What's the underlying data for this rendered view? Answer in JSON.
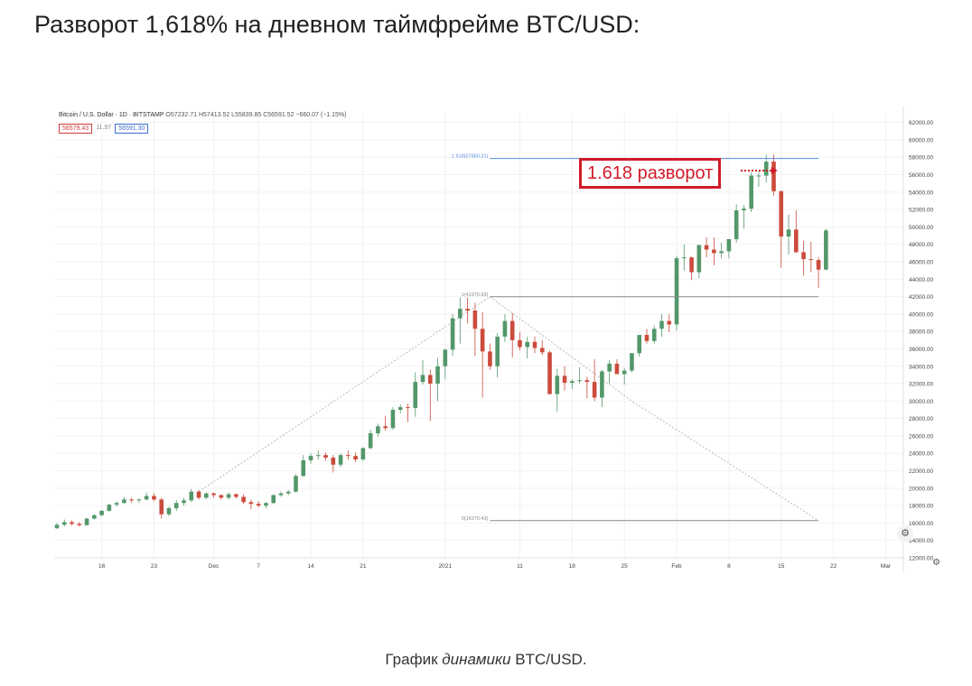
{
  "page": {
    "title": "Разворот 1,618% на дневном таймфрейме BTC/USD:",
    "caption_before": "График ",
    "caption_em": "динамики",
    "caption_after": " BTC/USD."
  },
  "legend": {
    "symbol": "Bitcoin / U.S. Dollar · 1D · BITSTAMP",
    "ohlc": "O57232.71 H57413.52 L55839.85 C56591.52 −660.07 (−1.15%)",
    "bid": "56579.43",
    "spread": "11.97",
    "ask": "56591.30"
  },
  "annotation": {
    "label": "1.618 разворот"
  },
  "colors": {
    "up": "#53976a",
    "down": "#cc4b3c",
    "fib_top": "#5b8fe0",
    "fib_line": "#8a8a8a",
    "annotation": "#d11a2a",
    "grid": "#f2f2f2"
  },
  "icons": {
    "settings": "gear-icon"
  },
  "chart_data": {
    "type": "candlestick",
    "title": "",
    "ylim": [
      12000,
      63000
    ],
    "y_ticks": [
      12000,
      14000,
      16000,
      18000,
      20000,
      22000,
      24000,
      26000,
      28000,
      30000,
      32000,
      34000,
      36000,
      38000,
      40000,
      42000,
      44000,
      46000,
      48000,
      50000,
      52000,
      54000,
      56000,
      58000,
      60000,
      62000
    ],
    "y_tick_labels": [
      "12000.00",
      "14000.00",
      "16000.00",
      "18000.00",
      "20000.00",
      "22000.00",
      "24000.00",
      "26000.00",
      "28000.00",
      "30000.00",
      "32000.00",
      "34000.00",
      "36000.00",
      "38000.00",
      "40000.00",
      "42000.00",
      "44000.00",
      "46000.00",
      "48000.00",
      "50000.00",
      "52000.00",
      "54000.00",
      "56000.00",
      "58000.00",
      "60000.00",
      "62000.00"
    ],
    "x_tick_labels": [
      {
        "label": "16",
        "day": 6
      },
      {
        "label": "23",
        "day": 13
      },
      {
        "label": "Dec",
        "day": 21
      },
      {
        "label": "7",
        "day": 27
      },
      {
        "label": "14",
        "day": 34
      },
      {
        "label": "21",
        "day": 41
      },
      {
        "label": "2021",
        "day": 52
      },
      {
        "label": "11",
        "day": 62
      },
      {
        "label": "18",
        "day": 69
      },
      {
        "label": "25",
        "day": 76
      },
      {
        "label": "Feb",
        "day": 83
      },
      {
        "label": "8",
        "day": 90
      },
      {
        "label": "15",
        "day": 97
      },
      {
        "label": "22",
        "day": 104
      },
      {
        "label": "Mar",
        "day": 111
      }
    ],
    "x_range": [
      0,
      113
    ],
    "fib_levels": [
      {
        "label": "1.618(57860.31)",
        "value": 57860.31,
        "ratio": 1.618,
        "x_start": 58,
        "x_end": 102,
        "color": "#5b8fe0"
      },
      {
        "label": "1(41976.93)",
        "value": 41976.93,
        "ratio": 1,
        "x_start": 58,
        "x_end": 102,
        "color": "#8a8a8a"
      },
      {
        "label": "0(16270.43)",
        "value": 16270.43,
        "ratio": 0,
        "x_start": 58,
        "x_end": 102,
        "color": "#8a8a8a"
      }
    ],
    "fib_path": [
      [
        19,
        19600
      ],
      [
        58,
        41976.93
      ],
      [
        77,
        30000
      ],
      [
        102,
        16270.43
      ]
    ],
    "ohlc": [
      [
        15400,
        16000,
        15300,
        15800
      ],
      [
        15800,
        16400,
        15600,
        16100
      ],
      [
        16100,
        16300,
        15700,
        15900
      ],
      [
        15900,
        16100,
        15600,
        15750
      ],
      [
        15750,
        16600,
        15700,
        16500
      ],
      [
        16500,
        17000,
        16400,
        16900
      ],
      [
        16900,
        17500,
        16800,
        17400
      ],
      [
        17400,
        18200,
        17300,
        18100
      ],
      [
        18100,
        18500,
        17900,
        18300
      ],
      [
        18300,
        19000,
        18200,
        18700
      ],
      [
        18700,
        18900,
        18300,
        18600
      ],
      [
        18600,
        18800,
        18300,
        18700
      ],
      [
        18700,
        19500,
        18600,
        19100
      ],
      [
        19100,
        19400,
        18500,
        18700
      ],
      [
        18700,
        18900,
        16500,
        17000
      ],
      [
        17000,
        17900,
        16800,
        17700
      ],
      [
        17700,
        18600,
        17400,
        18300
      ],
      [
        18300,
        18900,
        18000,
        18600
      ],
      [
        18600,
        19900,
        18400,
        19600
      ],
      [
        19600,
        19800,
        18700,
        18900
      ],
      [
        18900,
        19500,
        18700,
        19400
      ],
      [
        19400,
        19500,
        18900,
        19200
      ],
      [
        19200,
        19300,
        18700,
        18900
      ],
      [
        18900,
        19500,
        18700,
        19300
      ],
      [
        19300,
        19400,
        18800,
        19000
      ],
      [
        19000,
        19300,
        18200,
        18400
      ],
      [
        18400,
        18700,
        17600,
        18200
      ],
      [
        18200,
        18500,
        17800,
        18000
      ],
      [
        18000,
        18400,
        17700,
        18300
      ],
      [
        18300,
        19300,
        18200,
        19200
      ],
      [
        19200,
        19600,
        19000,
        19400
      ],
      [
        19400,
        19800,
        19200,
        19600
      ],
      [
        19600,
        21600,
        19500,
        21400
      ],
      [
        21400,
        23800,
        21300,
        23200
      ],
      [
        23200,
        24000,
        22800,
        23700
      ],
      [
        23700,
        24300,
        23300,
        23800
      ],
      [
        23800,
        24100,
        23200,
        23500
      ],
      [
        23500,
        23800,
        21800,
        22700
      ],
      [
        22700,
        24000,
        22400,
        23800
      ],
      [
        23800,
        24300,
        23300,
        23700
      ],
      [
        23700,
        24100,
        23000,
        23300
      ],
      [
        23300,
        24700,
        23100,
        24600
      ],
      [
        24600,
        26700,
        24500,
        26300
      ],
      [
        26300,
        27400,
        25900,
        27100
      ],
      [
        27100,
        28300,
        26600,
        26900
      ],
      [
        26900,
        29300,
        26700,
        29000
      ],
      [
        29000,
        29600,
        28600,
        29300
      ],
      [
        29300,
        29700,
        27600,
        29200
      ],
      [
        29200,
        33300,
        28200,
        32200
      ],
      [
        32200,
        34700,
        31900,
        33000
      ],
      [
        33000,
        33600,
        27700,
        32000
      ],
      [
        32000,
        35000,
        30000,
        34000
      ],
      [
        34000,
        36000,
        32500,
        35900
      ],
      [
        35900,
        40000,
        35200,
        39500
      ],
      [
        39500,
        41900,
        36600,
        40600
      ],
      [
        40600,
        41900,
        38900,
        40400
      ],
      [
        40400,
        41300,
        35200,
        38300
      ],
      [
        38300,
        40200,
        30400,
        35700
      ],
      [
        35700,
        36600,
        33600,
        34000
      ],
      [
        34000,
        37800,
        32700,
        37400
      ],
      [
        37400,
        40000,
        36800,
        39200
      ],
      [
        39200,
        40100,
        35000,
        37000
      ],
      [
        37000,
        37900,
        35800,
        36200
      ],
      [
        36200,
        37400,
        34900,
        36800
      ],
      [
        36800,
        37400,
        35500,
        36100
      ],
      [
        36100,
        37000,
        35300,
        35600
      ],
      [
        35600,
        35800,
        31000,
        30800
      ],
      [
        30800,
        33700,
        28800,
        32900
      ],
      [
        32900,
        34000,
        31200,
        32100
      ],
      [
        32100,
        32500,
        31400,
        32300
      ],
      [
        32300,
        33900,
        32000,
        32400
      ],
      [
        32400,
        32800,
        30300,
        32200
      ],
      [
        32200,
        34800,
        30000,
        30400
      ],
      [
        30400,
        33600,
        29300,
        33400
      ],
      [
        33400,
        34700,
        32000,
        34300
      ],
      [
        34300,
        34800,
        33200,
        33100
      ],
      [
        33100,
        33800,
        31900,
        33500
      ],
      [
        33500,
        35500,
        33300,
        35500
      ],
      [
        35500,
        37500,
        35100,
        37600
      ],
      [
        37600,
        38300,
        36600,
        36900
      ],
      [
        36900,
        38700,
        36600,
        38300
      ],
      [
        38300,
        40000,
        37400,
        39200
      ],
      [
        39200,
        40000,
        37900,
        38800
      ],
      [
        38800,
        46700,
        38100,
        46400
      ],
      [
        46400,
        48000,
        45000,
        46500
      ],
      [
        46500,
        46600,
        43900,
        44800
      ],
      [
        44800,
        48000,
        44100,
        47900
      ],
      [
        47900,
        48800,
        46500,
        47400
      ],
      [
        47400,
        48800,
        45600,
        47000
      ],
      [
        47000,
        48200,
        46400,
        47200
      ],
      [
        47200,
        48600,
        46400,
        48600
      ],
      [
        48600,
        52600,
        48200,
        51900
      ],
      [
        51900,
        52500,
        49800,
        52100
      ],
      [
        52100,
        56300,
        51700,
        55900
      ],
      [
        55900,
        56500,
        54600,
        55900
      ],
      [
        55900,
        58300,
        55100,
        57500
      ],
      [
        57500,
        58300,
        53600,
        54100
      ],
      [
        54100,
        54200,
        45300,
        48900
      ],
      [
        48900,
        51400,
        46800,
        49700
      ],
      [
        49700,
        51900,
        47000,
        47100
      ],
      [
        47100,
        48400,
        44400,
        46300
      ],
      [
        46300,
        48300,
        44800,
        46200
      ],
      [
        46200,
        46500,
        43000,
        45100
      ],
      [
        45100,
        49800,
        45000,
        49600
      ]
    ]
  }
}
